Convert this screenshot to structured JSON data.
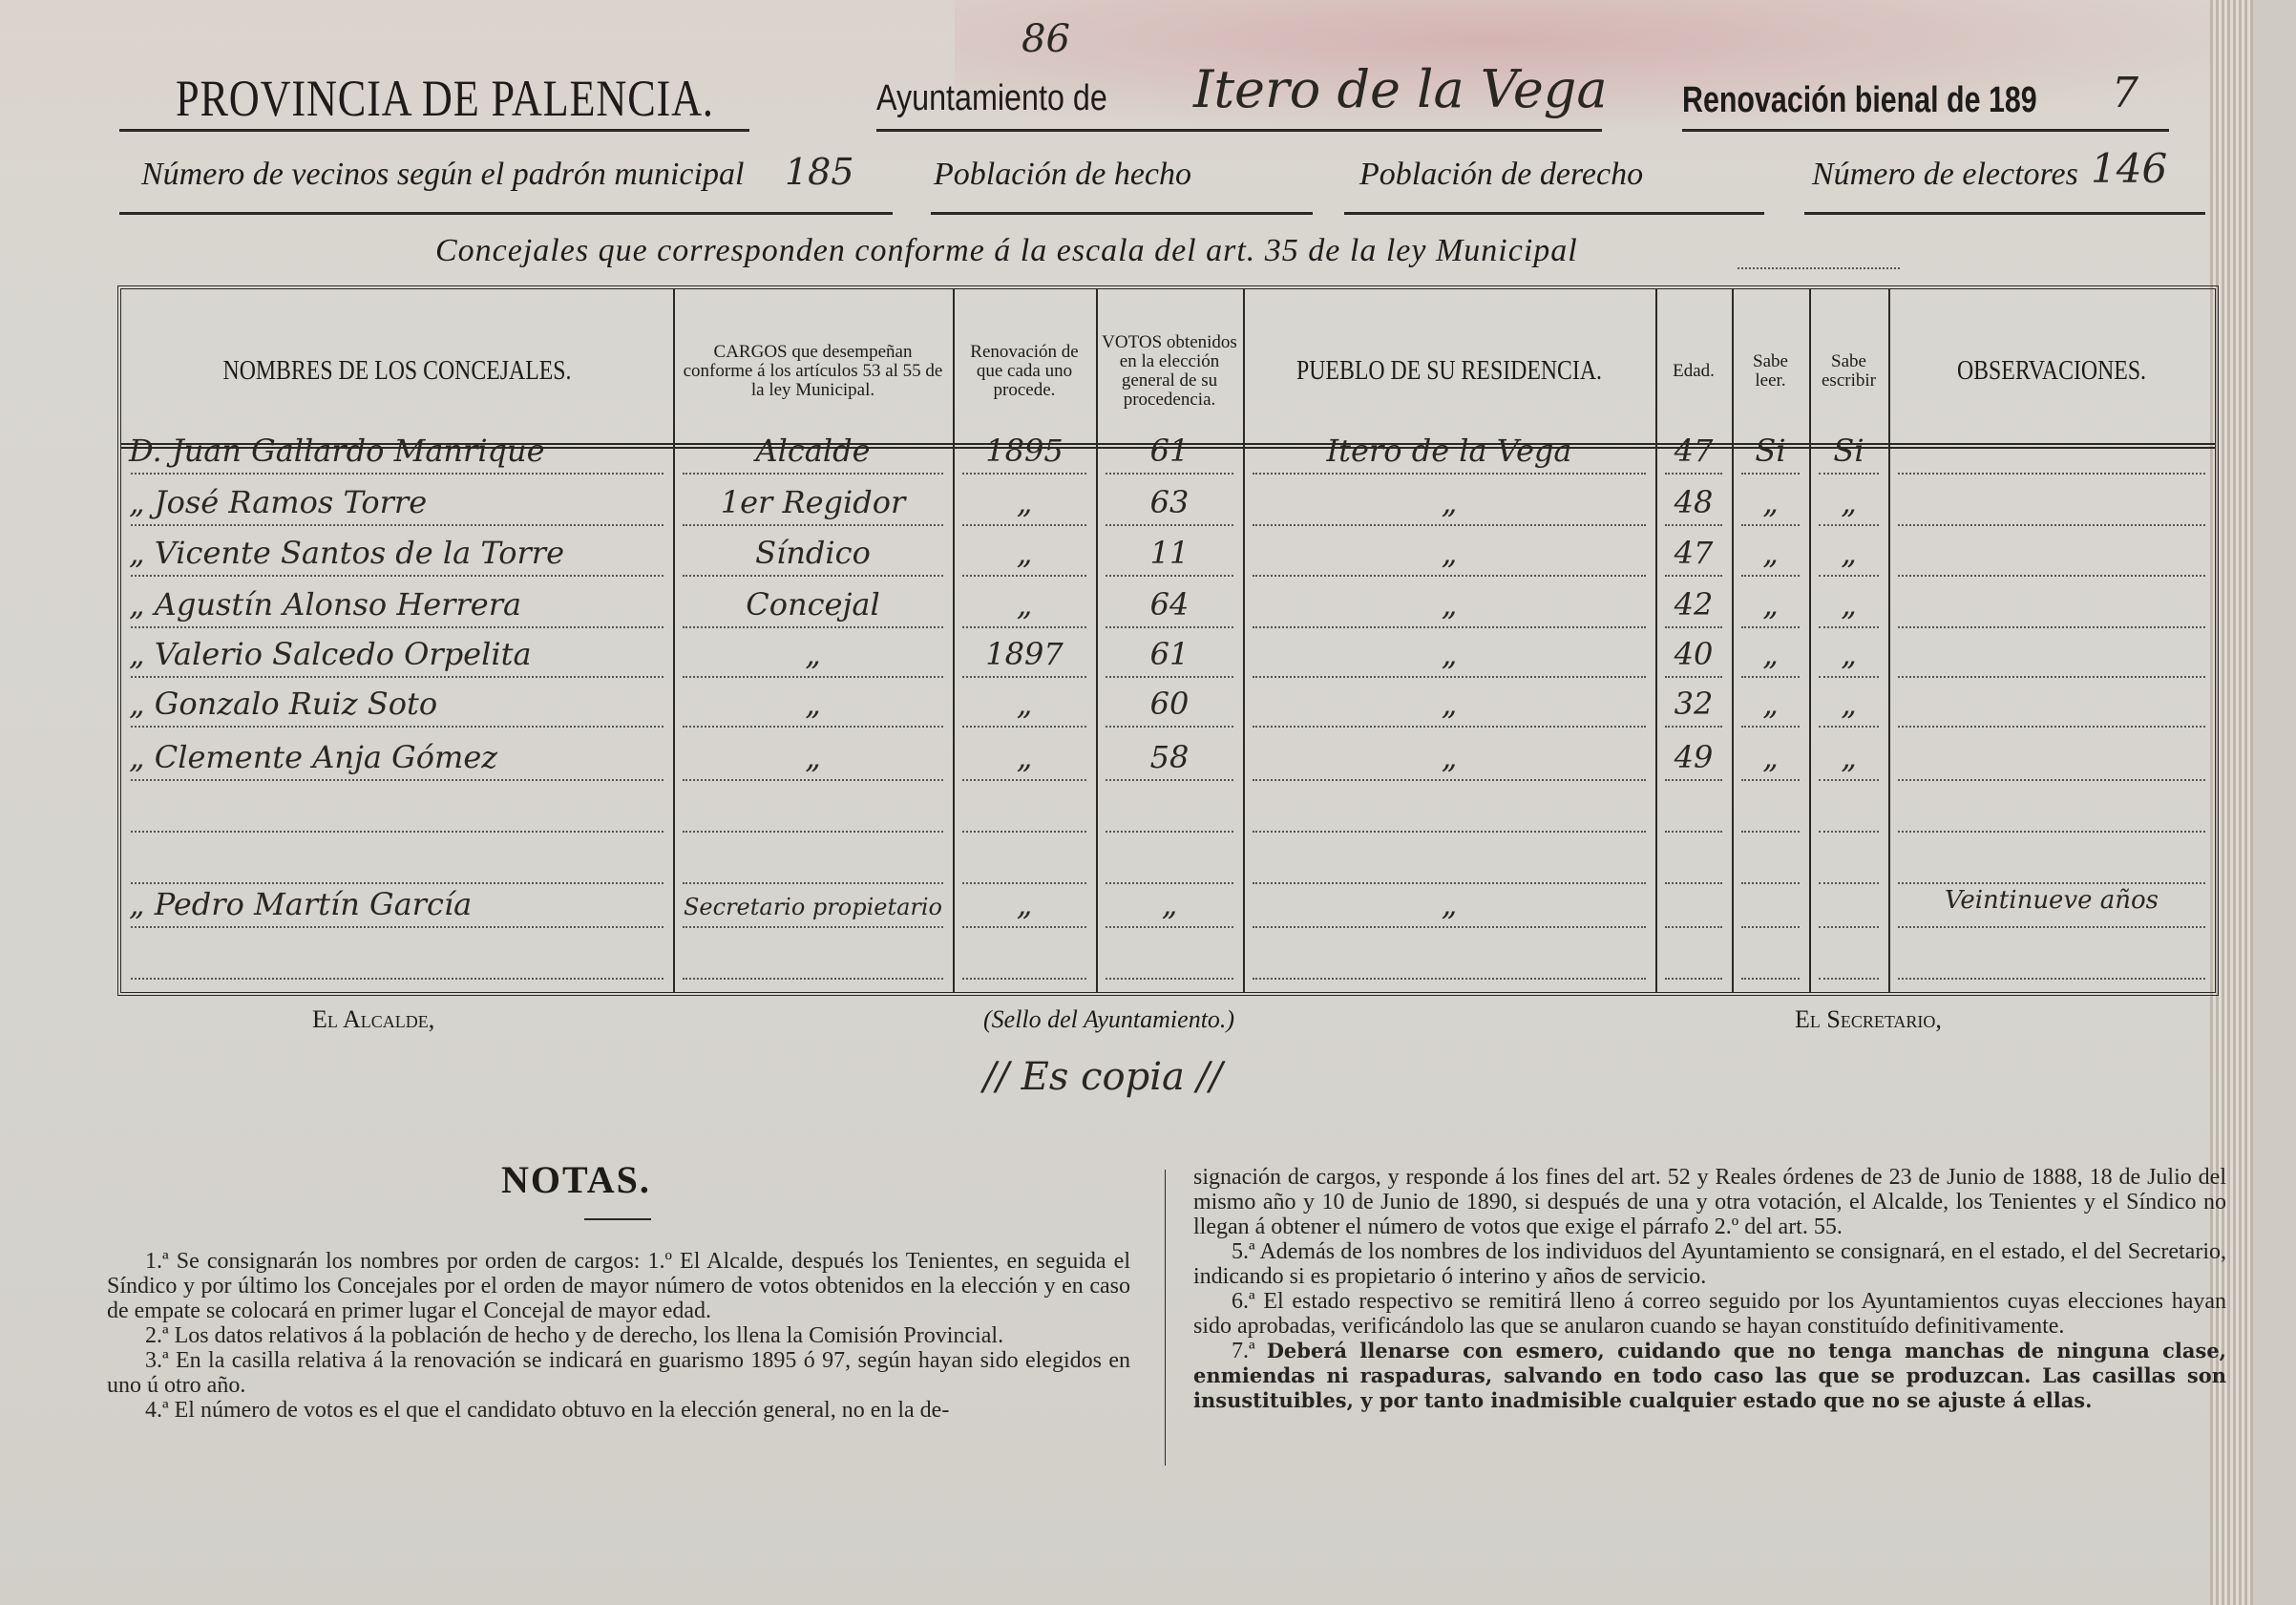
{
  "header": {
    "province": "PROVINCIA DE PALENCIA.",
    "page_number": "86",
    "ayuntamiento_label": "Ayuntamiento de",
    "ayuntamiento_value": "Itero de la Vega",
    "renovacion_label": "Renovación bienal de 189",
    "renovacion_year_digit": "7",
    "vecinos_label": "Número de vecinos según el padrón municipal",
    "vecinos_value": "185",
    "poblacion_hecho_label": "Población de hecho",
    "poblacion_derecho_label": "Población de derecho",
    "electores_label": "Número de electores",
    "electores_value": "146",
    "concejales_line": "Concejales que corresponden conforme á la escala del art. 35 de la ley Municipal"
  },
  "table": {
    "columns": [
      "NOMBRES DE LOS CONCEJALES.",
      "CARGOS que desempeñan conforme á los artículos 53 al 55 de la ley Municipal.",
      "Renovación de que cada uno procede.",
      "VOTOS obtenidos en la elección general de su procedencia.",
      "PUEBLO DE SU RESIDENCIA.",
      "Edad.",
      "Sabe leer.",
      "Sabe escribir",
      "OBSERVACIONES."
    ],
    "rows": [
      [
        "D. Juan Gallardo Manrique",
        "Alcalde",
        "1895",
        "61",
        "Itero de la Vega",
        "47",
        "Si",
        "Si",
        ""
      ],
      [
        "„ José Ramos Torre",
        "1er Regidor",
        "„",
        "63",
        "„",
        "48",
        "„",
        "„",
        ""
      ],
      [
        "„ Vicente Santos de la Torre",
        "Síndico",
        "„",
        "11",
        "„",
        "47",
        "„",
        "„",
        ""
      ],
      [
        "„ Agustín Alonso Herrera",
        "Concejal",
        "„",
        "64",
        "„",
        "42",
        "„",
        "„",
        ""
      ],
      [
        "„ Valerio Salcedo Orpelita",
        "„",
        "1897",
        "61",
        "„",
        "40",
        "„",
        "„",
        ""
      ],
      [
        "„ Gonzalo Ruiz Soto",
        "„",
        "„",
        "60",
        "„",
        "32",
        "„",
        "„",
        ""
      ],
      [
        "„ Clemente Anja Gómez",
        "„",
        "„",
        "58",
        "„",
        "49",
        "„",
        "„",
        ""
      ],
      [
        "",
        "",
        "",
        "",
        "",
        "",
        "",
        "",
        ""
      ],
      [
        "",
        "",
        "",
        "",
        "",
        "",
        "",
        "",
        ""
      ],
      [
        "„ Pedro Martín García",
        "Secretario propietario",
        "„",
        "„",
        "„",
        "",
        "",
        "",
        "Veintinueve años"
      ],
      [
        "",
        "",
        "",
        "",
        "",
        "",
        "",
        "",
        ""
      ]
    ]
  },
  "signatures": {
    "alcalde": "El Alcalde,",
    "sello": "(Sello del Ayuntamiento.)",
    "es_copia": "// Es copia //",
    "secretario": "El Secretario,"
  },
  "notes": {
    "title": "NOTAS.",
    "left": [
      "1.ª Se consignarán los nombres por orden de cargos: 1.º El Alcalde, después los Tenientes, en seguida el Síndico y por último los Concejales por el orden de mayor número de votos obtenidos en la elección y en caso de empate se colocará en primer lugar el Concejal de mayor edad.",
      "2.ª Los datos relativos á la población de hecho y de derecho, los llena la Comisión Provincial.",
      "3.ª En la casilla relativa á la renovación se indicará en guarismo 1895 ó 97, según hayan sido elegidos en uno ú otro año.",
      "4.ª El número de votos es el que el candidato obtuvo en la elección general, no en la de-"
    ],
    "right_cont": "signación de cargos, y responde á los fines del art. 52 y Reales órdenes de 23 de Junio de 1888, 18 de Julio del mismo año y 10 de Junio de 1890, si después de una y otra votación, el Alcalde, los Tenientes y el Síndico no llegan á obtener el número de votos que exige el párrafo 2.º del art. 55.",
    "right": [
      "5.ª Además de los nombres de los individuos del Ayuntamiento se consignará, en el estado, el del Secretario, indicando si es propietario ó interino y años de servicio.",
      "6.ª El estado respectivo se remitirá lleno á correo seguido por los Ayuntamientos cuyas elecciones hayan sido aprobadas, verificándolo las que se anularon cuando se hayan constituído definitivamente."
    ],
    "note7_num": "7.ª",
    "note7_bold": "Deberá llenarse con esmero, cuidando que no tenga manchas de ninguna clase, enmiendas ni raspaduras, salvando en todo caso las que se produzcan. Las casillas son insustituibles, y por tanto inadmisible cualquier estado que no se ajuste á ellas."
  }
}
